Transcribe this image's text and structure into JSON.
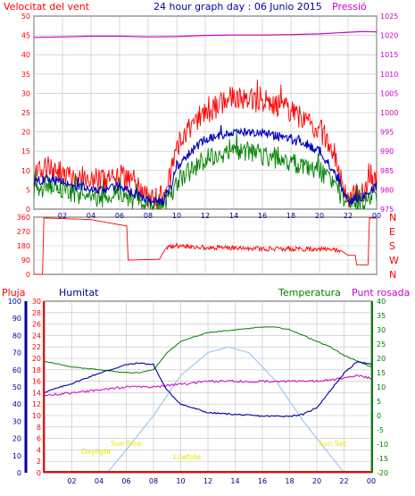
{
  "header": {
    "wind_title": "Velocitat del vent",
    "graph_title": "24 hour graph day : 06 Junio 2015",
    "pressure_title": "Pressió"
  },
  "lower_header": {
    "rain": "Pluja",
    "humidity": "Humitat",
    "temperature": "Temperatura",
    "dewpoint": "Punt rosada"
  },
  "sun_labels": {
    "daylight_start": "Daylight",
    "sun_rise": "Sun Rise",
    "lowtide": "Lowtide",
    "sun_set": "Sun Set"
  },
  "colors": {
    "wind_gust": "#ff0000",
    "wind_avg": "#0000c0",
    "wind_low": "#008000",
    "pressure": "#cc00cc",
    "direction": "#ff0000",
    "humidity": "#0000a0",
    "temperature": "#008000",
    "dewpoint": "#cc00cc",
    "solar": "#9ec8f0",
    "rain": "#ff0000",
    "grid": "#c0c0c0",
    "sun_label": "#e8e800"
  },
  "chart_data": [
    {
      "type": "line",
      "name": "wind",
      "x": [
        "00",
        "02",
        "04",
        "06",
        "08",
        "10",
        "12",
        "14",
        "16",
        "18",
        "20",
        "22",
        "00"
      ],
      "xlim": [
        0,
        24
      ],
      "ylim_left": [
        0,
        50
      ],
      "yticks_left": [
        0,
        5,
        10,
        15,
        20,
        25,
        30,
        35,
        40,
        45,
        50
      ],
      "ylim_right": [
        975,
        1025
      ],
      "yticks_right": [
        975,
        980,
        985,
        990,
        995,
        1000,
        1005,
        1010,
        1015,
        1020,
        1025
      ],
      "gust_profile": [
        [
          0,
          9
        ],
        [
          1,
          11
        ],
        [
          2,
          9
        ],
        [
          3,
          8
        ],
        [
          4,
          8
        ],
        [
          5,
          7
        ],
        [
          6,
          9
        ],
        [
          7,
          6
        ],
        [
          8,
          3
        ],
        [
          9,
          3
        ],
        [
          9.5,
          8
        ],
        [
          10,
          16
        ],
        [
          11,
          22
        ],
        [
          12,
          25
        ],
        [
          13,
          27
        ],
        [
          14,
          29
        ],
        [
          15,
          28
        ],
        [
          16,
          28
        ],
        [
          17,
          27
        ],
        [
          18,
          25
        ],
        [
          19,
          23
        ],
        [
          20,
          21
        ],
        [
          21,
          14
        ],
        [
          22,
          3
        ],
        [
          23,
          4
        ],
        [
          24,
          8
        ]
      ],
      "avg_profile": [
        [
          0,
          7
        ],
        [
          1,
          8
        ],
        [
          2,
          7
        ],
        [
          3,
          6
        ],
        [
          4,
          5
        ],
        [
          5,
          5
        ],
        [
          6,
          6
        ],
        [
          7,
          4
        ],
        [
          8,
          2
        ],
        [
          9,
          2
        ],
        [
          9.5,
          5
        ],
        [
          10,
          11
        ],
        [
          11,
          15
        ],
        [
          12,
          18
        ],
        [
          13,
          19
        ],
        [
          14,
          20
        ],
        [
          15,
          20
        ],
        [
          16,
          20
        ],
        [
          17,
          19
        ],
        [
          18,
          18
        ],
        [
          19,
          17
        ],
        [
          20,
          15
        ],
        [
          21,
          10
        ],
        [
          22,
          2
        ],
        [
          23,
          3
        ],
        [
          24,
          6
        ]
      ],
      "low_profile": [
        [
          0,
          5
        ],
        [
          1,
          6
        ],
        [
          2,
          5
        ],
        [
          3,
          4
        ],
        [
          4,
          3
        ],
        [
          5,
          3
        ],
        [
          6,
          4
        ],
        [
          7,
          2
        ],
        [
          8,
          1
        ],
        [
          9,
          1
        ],
        [
          9.5,
          3
        ],
        [
          10,
          7
        ],
        [
          11,
          10
        ],
        [
          12,
          13
        ],
        [
          13,
          14
        ],
        [
          14,
          15
        ],
        [
          15,
          15
        ],
        [
          16,
          14
        ],
        [
          17,
          13
        ],
        [
          18,
          12
        ],
        [
          19,
          11
        ],
        [
          20,
          10
        ],
        [
          21,
          6
        ],
        [
          22,
          1
        ],
        [
          23,
          2
        ],
        [
          24,
          4
        ]
      ],
      "pressure": [
        [
          0,
          1019.5
        ],
        [
          2,
          1019.6
        ],
        [
          4,
          1019.8
        ],
        [
          6,
          1019.8
        ],
        [
          8,
          1019.6
        ],
        [
          10,
          1019.7
        ],
        [
          12,
          1020.0
        ],
        [
          14,
          1020.1
        ],
        [
          16,
          1020.1
        ],
        [
          18,
          1020.2
        ],
        [
          20,
          1020.4
        ],
        [
          22,
          1020.8
        ],
        [
          23,
          1021.0
        ],
        [
          24,
          1020.9
        ]
      ]
    },
    {
      "type": "line",
      "name": "wind-direction",
      "ylim": [
        0,
        360
      ],
      "yticks": [
        0,
        90,
        180,
        270,
        360
      ],
      "compass": [
        "N",
        "W",
        "S",
        "E",
        "N"
      ],
      "points": [
        [
          0,
          0
        ],
        [
          0.6,
          0
        ],
        [
          0.7,
          355
        ],
        [
          4,
          345
        ],
        [
          5.5,
          320
        ],
        [
          6.5,
          305
        ],
        [
          6.6,
          90
        ],
        [
          8.8,
          95
        ],
        [
          9,
          130
        ],
        [
          9.3,
          170
        ],
        [
          10,
          180
        ],
        [
          12,
          170
        ],
        [
          14,
          165
        ],
        [
          16,
          160
        ],
        [
          18,
          160
        ],
        [
          20,
          160
        ],
        [
          21.5,
          150
        ],
        [
          22,
          120
        ],
        [
          22.5,
          120
        ],
        [
          22.6,
          60
        ],
        [
          23.4,
          60
        ],
        [
          23.5,
          355
        ],
        [
          24,
          355
        ]
      ]
    },
    {
      "type": "line",
      "name": "humidity-temperature",
      "ylim_left_humidity": [
        0,
        100
      ],
      "yticks_left_humidity": [
        0,
        10,
        20,
        30,
        40,
        50,
        60,
        70,
        80,
        90,
        100
      ],
      "ylim_left_rain": [
        0,
        30
      ],
      "yticks_left_rain": [
        0,
        2,
        4,
        6,
        8,
        10,
        12,
        14,
        16,
        18,
        20,
        22,
        24,
        26,
        28,
        30
      ],
      "ylim_right": [
        -20,
        40
      ],
      "yticks_right": [
        -20,
        -15,
        -10,
        -5,
        0,
        5,
        10,
        15,
        20,
        25,
        30,
        35,
        40
      ],
      "humidity": [
        [
          0,
          47
        ],
        [
          2,
          52
        ],
        [
          4,
          58
        ],
        [
          6,
          63
        ],
        [
          7,
          64
        ],
        [
          8,
          63
        ],
        [
          8.5,
          55
        ],
        [
          9,
          48
        ],
        [
          10,
          40
        ],
        [
          12,
          35
        ],
        [
          14,
          34
        ],
        [
          16,
          33
        ],
        [
          18,
          33
        ],
        [
          19,
          34
        ],
        [
          20,
          38
        ],
        [
          21,
          48
        ],
        [
          22,
          58
        ],
        [
          23,
          65
        ],
        [
          24,
          63
        ]
      ],
      "temperature": [
        [
          0,
          19
        ],
        [
          2,
          17
        ],
        [
          4,
          16
        ],
        [
          6,
          15
        ],
        [
          7,
          15
        ],
        [
          8,
          16
        ],
        [
          9,
          22
        ],
        [
          10,
          26
        ],
        [
          12,
          29
        ],
        [
          14,
          30
        ],
        [
          16,
          31
        ],
        [
          17,
          31
        ],
        [
          18,
          30
        ],
        [
          19,
          28
        ],
        [
          20,
          26
        ],
        [
          21,
          24
        ],
        [
          22,
          21
        ],
        [
          23,
          19
        ],
        [
          24,
          17
        ]
      ],
      "dewpoint": [
        [
          0,
          7
        ],
        [
          2,
          8
        ],
        [
          4,
          9
        ],
        [
          6,
          10
        ],
        [
          8,
          10
        ],
        [
          10,
          11
        ],
        [
          12,
          12
        ],
        [
          14,
          12
        ],
        [
          16,
          12
        ],
        [
          18,
          12
        ],
        [
          20,
          12
        ],
        [
          22,
          13
        ],
        [
          23,
          14
        ],
        [
          24,
          13
        ]
      ],
      "solar_curve": [
        [
          4.6,
          -20
        ],
        [
          6,
          -12
        ],
        [
          8,
          0
        ],
        [
          10,
          14
        ],
        [
          12,
          22
        ],
        [
          13.5,
          24
        ],
        [
          15,
          22
        ],
        [
          17,
          12
        ],
        [
          19,
          -2
        ],
        [
          21,
          -14
        ],
        [
          22,
          -20
        ]
      ],
      "rain": [
        [
          0,
          0
        ],
        [
          24,
          0
        ]
      ]
    }
  ]
}
